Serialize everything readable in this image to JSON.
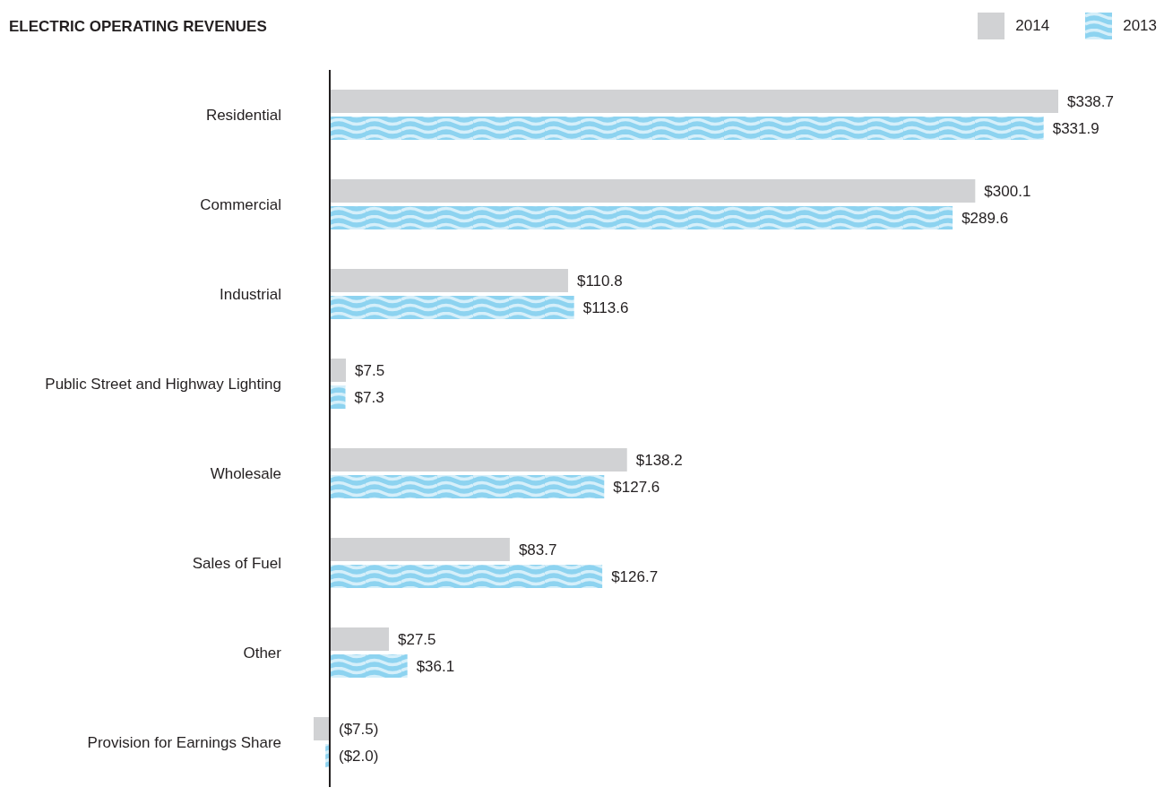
{
  "chart_data": {
    "type": "bar",
    "orientation": "horizontal",
    "title": "ELECTRIC OPERATING REVENUES",
    "categories": [
      "Residential",
      "Commercial",
      "Industrial",
      "Public Street and Highway Lighting",
      "Wholesale",
      "Sales of Fuel",
      "Other",
      "Provision for Earnings Share"
    ],
    "series": [
      {
        "name": "2014",
        "color": "#d1d2d4",
        "values": [
          338.7,
          300.1,
          110.8,
          7.5,
          138.2,
          83.7,
          27.5,
          -7.5
        ],
        "value_labels": [
          "$338.7",
          "$300.1",
          "$110.8",
          "$7.5",
          "$138.2",
          "$83.7",
          "$27.5",
          "($7.5)"
        ]
      },
      {
        "name": "2013",
        "color": "#8dd3f0",
        "values": [
          331.9,
          289.6,
          113.6,
          7.3,
          127.6,
          126.7,
          36.1,
          -2.0
        ],
        "value_labels": [
          "$331.9",
          "$289.6",
          "$113.6",
          "$7.3",
          "$127.6",
          "$126.7",
          "$36.1",
          "($2.0)"
        ]
      }
    ],
    "legend": "top right"
  }
}
